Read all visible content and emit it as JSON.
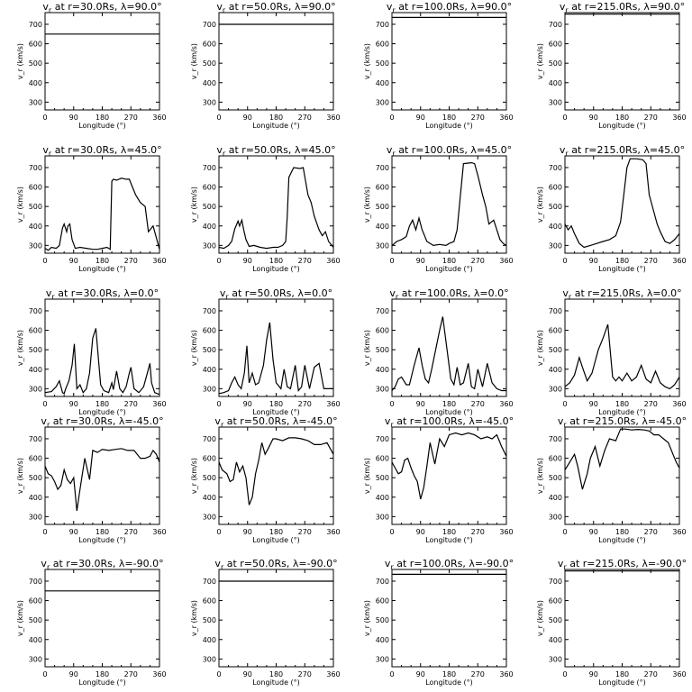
{
  "figure": {
    "xlabel": "Longitude (°)",
    "ylabel": "v_r (km/s)",
    "xticks": [
      0,
      90,
      180,
      270,
      360
    ],
    "yticks": [
      300,
      400,
      500,
      600,
      700
    ],
    "xlim": [
      0,
      360
    ],
    "ylim": [
      260,
      760
    ],
    "line_color": "#000000",
    "background": "#ffffff"
  },
  "chart_data": [
    {
      "type": "line",
      "title_var": "v",
      "title_sub": "r",
      "title_rest": " at r=30.0Rs, λ=90.0°",
      "radius": "30.0Rs",
      "latitude": "90.0°",
      "x": [
        0,
        360
      ],
      "y": [
        650,
        650
      ]
    },
    {
      "type": "line",
      "title_var": "v",
      "title_sub": "r",
      "title_rest": " at r=50.0Rs, λ=90.0°",
      "radius": "50.0Rs",
      "latitude": "90.0°",
      "x": [
        0,
        360
      ],
      "y": [
        700,
        700
      ]
    },
    {
      "type": "line",
      "title_var": "v",
      "title_sub": "r",
      "title_rest": " at r=100.0Rs, λ=90.0°",
      "radius": "100.0Rs",
      "latitude": "90.0°",
      "x": [
        0,
        360
      ],
      "y": [
        735,
        735
      ]
    },
    {
      "type": "line",
      "title_var": "v",
      "title_sub": "r",
      "title_rest": " at r=215.0Rs, λ=90.0°",
      "radius": "215.0Rs",
      "latitude": "90.0°",
      "x": [
        0,
        360
      ],
      "y": [
        752,
        752
      ]
    },
    {
      "type": "line",
      "title_var": "v",
      "title_sub": "r",
      "title_rest": " at r=30.0Rs, λ=45.0°",
      "radius": "30.0Rs",
      "latitude": "45.0°",
      "x": [
        0,
        10,
        20,
        35,
        45,
        55,
        60,
        68,
        72,
        78,
        85,
        95,
        110,
        130,
        150,
        165,
        180,
        195,
        205,
        210,
        215,
        225,
        240,
        255,
        265,
        275,
        285,
        300,
        315,
        325,
        330,
        340,
        350,
        360
      ],
      "y": [
        285,
        275,
        290,
        285,
        300,
        390,
        410,
        370,
        400,
        410,
        330,
        285,
        290,
        285,
        280,
        280,
        285,
        290,
        280,
        630,
        640,
        635,
        645,
        640,
        640,
        600,
        560,
        520,
        500,
        370,
        380,
        400,
        340,
        280
      ]
    },
    {
      "type": "line",
      "title_var": "v",
      "title_sub": "r",
      "title_rest": " at r=50.0Rs, λ=45.0°",
      "radius": "50.0Rs",
      "latitude": "45.0°",
      "x": [
        0,
        15,
        30,
        40,
        50,
        60,
        65,
        72,
        78,
        85,
        95,
        110,
        130,
        150,
        170,
        185,
        200,
        210,
        215,
        220,
        235,
        255,
        265,
        280,
        290,
        300,
        315,
        325,
        335,
        345,
        360
      ],
      "y": [
        290,
        285,
        300,
        320,
        385,
        425,
        400,
        430,
        380,
        330,
        295,
        300,
        290,
        285,
        290,
        290,
        300,
        320,
        450,
        650,
        700,
        695,
        700,
        560,
        520,
        450,
        380,
        350,
        370,
        320,
        290
      ]
    },
    {
      "type": "line",
      "title_var": "v",
      "title_sub": "r",
      "title_rest": " at r=100.0Rs, λ=45.0°",
      "radius": "100.0Rs",
      "latitude": "45.0°",
      "x": [
        0,
        15,
        30,
        45,
        55,
        65,
        75,
        85,
        95,
        110,
        130,
        150,
        170,
        180,
        195,
        205,
        215,
        225,
        250,
        260,
        270,
        285,
        295,
        305,
        320,
        330,
        340,
        350,
        360
      ],
      "y": [
        300,
        320,
        330,
        345,
        400,
        430,
        380,
        440,
        380,
        320,
        300,
        305,
        300,
        310,
        320,
        380,
        550,
        720,
        725,
        720,
        660,
        560,
        500,
        410,
        430,
        380,
        330,
        310,
        300
      ]
    },
    {
      "type": "line",
      "title_var": "v",
      "title_sub": "r",
      "title_rest": " at r=215.0Rs, λ=45.0°",
      "radius": "215.0Rs",
      "latitude": "45.0°",
      "x": [
        0,
        10,
        20,
        30,
        45,
        60,
        80,
        100,
        120,
        140,
        160,
        175,
        185,
        195,
        205,
        225,
        245,
        255,
        265,
        280,
        290,
        300,
        315,
        330,
        345,
        360
      ],
      "y": [
        410,
        380,
        400,
        360,
        310,
        290,
        300,
        310,
        320,
        330,
        350,
        420,
        560,
        700,
        745,
        745,
        740,
        720,
        560,
        470,
        410,
        370,
        320,
        310,
        330,
        360
      ]
    },
    {
      "type": "line",
      "title_var": "v",
      "title_sub": "r",
      "title_rest": " at r=30.0Rs, λ=0.0°",
      "radius": "30.0Rs",
      "latitude": "0.0°",
      "x": [
        0,
        20,
        35,
        45,
        55,
        60,
        65,
        75,
        85,
        92,
        100,
        110,
        120,
        130,
        140,
        150,
        160,
        168,
        175,
        185,
        200,
        210,
        215,
        225,
        235,
        245,
        255,
        265,
        270,
        280,
        295,
        310,
        330,
        335,
        345,
        360
      ],
      "y": [
        280,
        285,
        310,
        340,
        280,
        275,
        300,
        340,
        420,
        530,
        300,
        320,
        280,
        300,
        380,
        560,
        610,
        450,
        320,
        290,
        280,
        330,
        295,
        390,
        300,
        280,
        310,
        380,
        410,
        300,
        280,
        310,
        430,
        330,
        280,
        270
      ]
    },
    {
      "type": "line",
      "title_var": "v",
      "title_sub": "r",
      "title_rest": " at r=50.0Rs, λ=0.0°",
      "radius": "50.0Rs",
      "latitude": "0.0°",
      "x": [
        0,
        15,
        30,
        40,
        50,
        60,
        70,
        80,
        88,
        95,
        105,
        115,
        125,
        140,
        150,
        160,
        170,
        180,
        195,
        205,
        215,
        225,
        240,
        250,
        260,
        270,
        285,
        300,
        315,
        330,
        345,
        360
      ],
      "y": [
        275,
        280,
        290,
        330,
        360,
        320,
        300,
        380,
        520,
        330,
        380,
        320,
        330,
        420,
        550,
        640,
        450,
        330,
        300,
        400,
        310,
        300,
        420,
        290,
        310,
        420,
        300,
        410,
        430,
        300,
        300,
        300
      ]
    },
    {
      "type": "line",
      "title_var": "v",
      "title_sub": "r",
      "title_rest": " at r=100.0Rs, λ=0.0°",
      "radius": "100.0Rs",
      "latitude": "0.0°",
      "x": [
        0,
        10,
        20,
        30,
        45,
        55,
        70,
        85,
        95,
        105,
        115,
        125,
        140,
        150,
        160,
        175,
        185,
        195,
        205,
        215,
        225,
        240,
        250,
        260,
        270,
        285,
        300,
        315,
        330,
        345,
        360
      ],
      "y": [
        290,
        310,
        350,
        360,
        320,
        320,
        420,
        510,
        420,
        350,
        330,
        400,
        520,
        600,
        670,
        480,
        350,
        320,
        410,
        320,
        330,
        430,
        310,
        300,
        400,
        310,
        430,
        330,
        300,
        290,
        290
      ]
    },
    {
      "type": "line",
      "title_var": "v",
      "title_sub": "r",
      "title_rest": " at r=215.0Rs, λ=0.0°",
      "radius": "215.0Rs",
      "latitude": "0.0°",
      "x": [
        0,
        15,
        30,
        45,
        55,
        70,
        85,
        95,
        105,
        120,
        135,
        150,
        160,
        170,
        180,
        195,
        210,
        225,
        240,
        255,
        270,
        285,
        300,
        315,
        330,
        345,
        360
      ],
      "y": [
        310,
        330,
        370,
        460,
        410,
        340,
        380,
        440,
        500,
        560,
        630,
        360,
        340,
        360,
        340,
        380,
        340,
        360,
        420,
        350,
        330,
        390,
        330,
        310,
        300,
        320,
        360
      ]
    },
    {
      "type": "line",
      "title_var": "v",
      "title_sub": "r",
      "title_rest": " at r=30.0Rs, λ=-45.0°",
      "radius": "30.0Rs",
      "latitude": "-45.0°",
      "x": [
        0,
        10,
        20,
        30,
        40,
        50,
        60,
        70,
        80,
        90,
        100,
        110,
        125,
        140,
        150,
        165,
        180,
        200,
        220,
        240,
        260,
        280,
        300,
        315,
        330,
        340,
        350,
        360
      ],
      "y": [
        560,
        520,
        510,
        480,
        440,
        460,
        540,
        490,
        470,
        500,
        330,
        440,
        600,
        490,
        640,
        630,
        645,
        640,
        645,
        650,
        640,
        640,
        600,
        600,
        610,
        640,
        620,
        580
      ]
    },
    {
      "type": "line",
      "title_var": "v",
      "title_sub": "r",
      "title_rest": " at r=50.0Rs, λ=-45.0°",
      "radius": "50.0Rs",
      "latitude": "-45.0°",
      "x": [
        0,
        10,
        25,
        35,
        45,
        55,
        65,
        75,
        85,
        95,
        105,
        115,
        125,
        135,
        145,
        155,
        170,
        180,
        200,
        220,
        240,
        260,
        280,
        300,
        320,
        340,
        350,
        360
      ],
      "y": [
        580,
        540,
        520,
        480,
        490,
        580,
        530,
        560,
        500,
        360,
        400,
        520,
        590,
        680,
        620,
        650,
        700,
        700,
        690,
        705,
        705,
        700,
        690,
        670,
        670,
        680,
        650,
        620
      ]
    },
    {
      "type": "line",
      "title_var": "v",
      "title_sub": "r",
      "title_rest": " at r=100.0Rs, λ=-45.0°",
      "radius": "100.0Rs",
      "latitude": "-45.0°",
      "x": [
        0,
        10,
        20,
        30,
        40,
        50,
        60,
        70,
        80,
        90,
        100,
        110,
        120,
        135,
        150,
        165,
        180,
        200,
        220,
        240,
        260,
        280,
        300,
        315,
        330,
        345,
        360
      ],
      "y": [
        580,
        550,
        520,
        530,
        590,
        600,
        550,
        510,
        480,
        390,
        450,
        560,
        680,
        570,
        700,
        660,
        720,
        730,
        720,
        730,
        720,
        700,
        710,
        700,
        720,
        660,
        610
      ]
    },
    {
      "type": "line",
      "title_var": "v",
      "title_sub": "r",
      "title_rest": " at r=215.0Rs, λ=-45.0°",
      "radius": "215.0Rs",
      "latitude": "-45.0°",
      "x": [
        0,
        15,
        30,
        40,
        55,
        70,
        80,
        95,
        110,
        125,
        140,
        160,
        175,
        190,
        210,
        230,
        250,
        265,
        280,
        295,
        310,
        325,
        340,
        350,
        360
      ],
      "y": [
        540,
        580,
        620,
        560,
        440,
        520,
        600,
        660,
        560,
        640,
        700,
        690,
        750,
        750,
        745,
        748,
        745,
        740,
        720,
        720,
        700,
        680,
        620,
        580,
        550
      ]
    },
    {
      "type": "line",
      "title_var": "v",
      "title_sub": "r",
      "title_rest": " at r=30.0Rs, λ=-90.0°",
      "radius": "30.0Rs",
      "latitude": "-90.0°",
      "x": [
        0,
        360
      ],
      "y": [
        650,
        650
      ]
    },
    {
      "type": "line",
      "title_var": "v",
      "title_sub": "r",
      "title_rest": " at r=50.0Rs, λ=-90.0°",
      "radius": "50.0Rs",
      "latitude": "-90.0°",
      "x": [
        0,
        360
      ],
      "y": [
        700,
        700
      ]
    },
    {
      "type": "line",
      "title_var": "v",
      "title_sub": "r",
      "title_rest": " at r=100.0Rs, λ=-90.0°",
      "radius": "100.0Rs",
      "latitude": "-90.0°",
      "x": [
        0,
        360
      ],
      "y": [
        735,
        735
      ]
    },
    {
      "type": "line",
      "title_var": "v",
      "title_sub": "r",
      "title_rest": " at r=215.0Rs, λ=-90.0°",
      "radius": "215.0Rs",
      "latitude": "-90.0°",
      "x": [
        0,
        360
      ],
      "y": [
        752,
        752
      ]
    }
  ]
}
